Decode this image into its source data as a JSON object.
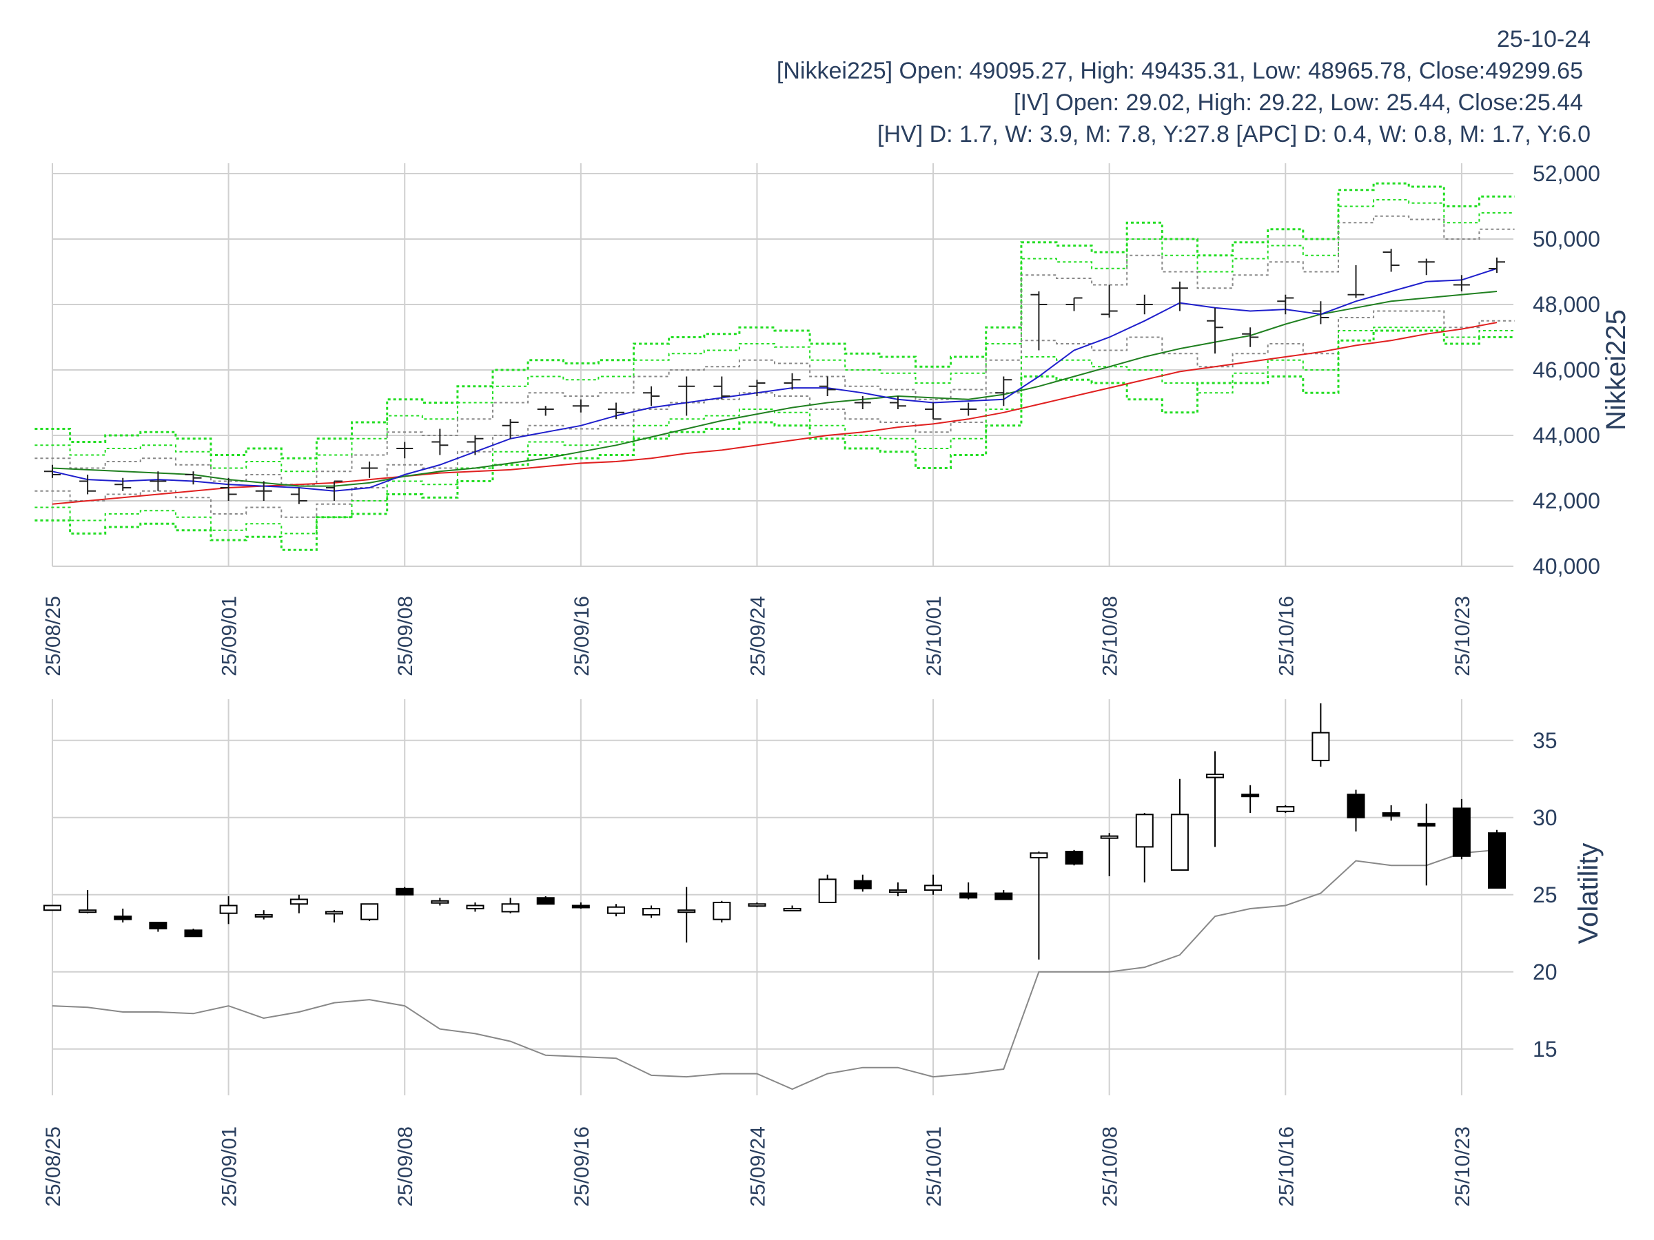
{
  "header": {
    "date": "25-10-24",
    "line1": "[Nikkei225] Open: 49095.27, High: 49435.31, Low: 48965.78, Close:49299.65",
    "line2": "[IV] Open: 29.02, High: 29.22, Low: 25.44, Close:25.44",
    "line3": "[HV] D: 1.7, W: 3.9, M: 7.8, Y:27.8 [APC] D: 0.4, W: 0.8, M: 1.7, Y:6.0"
  },
  "colors": {
    "grid": "#d0d0d0",
    "ohlc": "#222222",
    "ma_blue": "#1f1fcc",
    "ma_green": "#208020",
    "ma_red": "#e02020",
    "band_green": "#22dd22",
    "band_gray": "#888888",
    "hv_line": "#888888"
  },
  "chart_data": [
    {
      "type": "ohlc",
      "name": "price",
      "ylabel": "Nikkei225",
      "ylim": [
        40000,
        52000
      ],
      "yticks": [
        40000,
        42000,
        44000,
        46000,
        48000,
        50000,
        52000
      ],
      "ytick_labels": [
        "40,000",
        "42,000",
        "44,000",
        "46,000",
        "48,000",
        "50,000",
        "52,000"
      ],
      "xticks": [
        "25/08/25",
        "25/09/01",
        "25/09/08",
        "25/09/16",
        "25/09/24",
        "25/10/01",
        "25/10/08",
        "25/10/16",
        "25/10/23"
      ],
      "xtick_index": [
        0,
        5,
        10,
        15,
        20,
        25,
        30,
        35,
        40
      ],
      "x": [
        0,
        1,
        2,
        3,
        4,
        5,
        6,
        7,
        8,
        9,
        10,
        11,
        12,
        13,
        14,
        15,
        16,
        17,
        18,
        19,
        20,
        21,
        22,
        23,
        24,
        25,
        26,
        27,
        28,
        29,
        30,
        31,
        32,
        33,
        34,
        35,
        36,
        37,
        38,
        39,
        40,
        41
      ],
      "open": [
        42900,
        42600,
        42500,
        42600,
        42800,
        42400,
        42300,
        42200,
        42400,
        43000,
        43600,
        43800,
        43800,
        44300,
        44800,
        44900,
        44800,
        45300,
        45500,
        45500,
        45500,
        45600,
        45500,
        45000,
        45000,
        44800,
        44800,
        45300,
        48300,
        48000,
        47700,
        48000,
        48500,
        47500,
        47100,
        48100,
        47800,
        48300,
        49600,
        49300,
        48600,
        49095.27
      ],
      "high": [
        43100,
        42800,
        42700,
        42900,
        42900,
        42700,
        42600,
        42400,
        42600,
        43200,
        43800,
        44200,
        44000,
        44500,
        44900,
        45100,
        45000,
        45500,
        45800,
        45800,
        45700,
        45900,
        45800,
        45200,
        45200,
        45000,
        45000,
        45800,
        48400,
        48200,
        48600,
        48300,
        48700,
        47900,
        47300,
        48300,
        48100,
        49200,
        49700,
        49400,
        48900,
        49435.31
      ],
      "low": [
        42700,
        42200,
        42300,
        42300,
        42500,
        42000,
        42000,
        41900,
        42000,
        42700,
        43300,
        43400,
        43400,
        43900,
        44600,
        44700,
        44500,
        44900,
        44600,
        45100,
        45200,
        45400,
        45200,
        44800,
        44800,
        44500,
        44600,
        44900,
        46600,
        47800,
        47600,
        47700,
        47800,
        46500,
        46700,
        47700,
        47400,
        48200,
        49000,
        48900,
        48400,
        48965.78
      ],
      "close": [
        42800,
        42300,
        42400,
        42600,
        42700,
        42200,
        42300,
        42000,
        42600,
        43000,
        43600,
        43700,
        43900,
        44400,
        44800,
        44900,
        44700,
        45200,
        45500,
        45200,
        45600,
        45700,
        45400,
        45000,
        44900,
        44500,
        44800,
        45700,
        48000,
        48200,
        47800,
        48000,
        48500,
        47300,
        47000,
        48200,
        47600,
        48300,
        49200,
        49300,
        48600,
        49299.65
      ],
      "ma_blue": [
        42900,
        42650,
        42600,
        42650,
        42600,
        42500,
        42450,
        42400,
        42300,
        42400,
        42800,
        43100,
        43500,
        43900,
        44100,
        44300,
        44600,
        44850,
        45000,
        45150,
        45300,
        45450,
        45450,
        45300,
        45100,
        45000,
        45050,
        45100,
        45800,
        46600,
        47000,
        47500,
        48050,
        47900,
        47800,
        47850,
        47700,
        48100,
        48400,
        48700,
        48750,
        49100
      ],
      "ma_green": [
        43000,
        42950,
        42900,
        42850,
        42800,
        42650,
        42550,
        42450,
        42450,
        42550,
        42750,
        42900,
        43000,
        43150,
        43300,
        43500,
        43700,
        43950,
        44200,
        44450,
        44650,
        44850,
        45000,
        45100,
        45200,
        45150,
        45100,
        45250,
        45500,
        45800,
        46100,
        46400,
        46650,
        46850,
        47050,
        47400,
        47700,
        47900,
        48100,
        48200,
        48300,
        48400
      ],
      "ma_red": [
        41900,
        42000,
        42100,
        42200,
        42300,
        42400,
        42450,
        42500,
        42550,
        42650,
        42750,
        42850,
        42900,
        42950,
        43050,
        43150,
        43200,
        43300,
        43450,
        43550,
        43700,
        43850,
        44000,
        44100,
        44250,
        44350,
        44500,
        44700,
        44950,
        45200,
        45450,
        45700,
        45950,
        46100,
        46250,
        46400,
        46550,
        46750,
        46900,
        47100,
        47250,
        47450
      ],
      "band_green_upper2": [
        44200,
        43800,
        44000,
        44100,
        43900,
        43400,
        43600,
        43300,
        43900,
        44400,
        45100,
        45000,
        45500,
        46000,
        46300,
        46200,
        46300,
        46800,
        47000,
        47100,
        47300,
        47200,
        46800,
        46500,
        46400,
        46100,
        46400,
        47300,
        49900,
        49800,
        49600,
        50500,
        50000,
        49500,
        49900,
        50300,
        50000,
        51500,
        51700,
        51600,
        51000,
        51300
      ],
      "band_green_upper1": [
        43700,
        43400,
        43600,
        43700,
        43500,
        43000,
        43200,
        42900,
        43400,
        43900,
        44600,
        44500,
        45000,
        45500,
        45800,
        45700,
        45800,
        46300,
        46500,
        46600,
        46800,
        46700,
        46300,
        46000,
        45900,
        45600,
        45900,
        46800,
        49400,
        49300,
        49100,
        50000,
        49500,
        49000,
        49400,
        49800,
        49500,
        51000,
        51200,
        51100,
        50500,
        50800
      ],
      "band_gray_upper": [
        43300,
        43000,
        43200,
        43300,
        43100,
        42600,
        42800,
        42500,
        42900,
        43400,
        44100,
        44000,
        44500,
        45000,
        45300,
        45200,
        45300,
        45800,
        46000,
        46100,
        46300,
        46200,
        45800,
        45500,
        45400,
        45100,
        45400,
        46300,
        48900,
        48800,
        48600,
        49500,
        49000,
        48500,
        48900,
        49300,
        49000,
        50500,
        50700,
        50600,
        50000,
        50300
      ],
      "band_gray_lower": [
        42300,
        42000,
        42200,
        42300,
        42100,
        41600,
        41800,
        41500,
        41900,
        42400,
        43100,
        43000,
        43500,
        44000,
        44300,
        44200,
        44300,
        44800,
        45000,
        45100,
        45300,
        45200,
        44800,
        44500,
        44400,
        44100,
        44400,
        45300,
        46900,
        46800,
        46600,
        47000,
        46500,
        46100,
        46500,
        46800,
        46500,
        47600,
        47800,
        47800,
        47300,
        47500
      ],
      "band_green_lower1": [
        41800,
        41400,
        41600,
        41700,
        41500,
        41100,
        41300,
        41000,
        41500,
        42000,
        42600,
        42500,
        43000,
        43500,
        43800,
        43700,
        43800,
        44300,
        44500,
        44600,
        44800,
        44700,
        44300,
        44000,
        43900,
        43600,
        43900,
        44800,
        46400,
        46300,
        46100,
        46000,
        45600,
        45300,
        45900,
        46300,
        46000,
        47200,
        47300,
        47300,
        47000,
        47200
      ],
      "band_green_lower2": [
        41400,
        41000,
        41200,
        41300,
        41100,
        40800,
        40900,
        40500,
        41500,
        41600,
        42200,
        42100,
        42600,
        43100,
        43400,
        43300,
        43400,
        43900,
        44100,
        44200,
        44400,
        44300,
        43900,
        43600,
        43500,
        43000,
        43400,
        44300,
        45800,
        45700,
        45600,
        45100,
        44700,
        45600,
        45600,
        45800,
        45300,
        46900,
        47200,
        47200,
        46800,
        47000
      ]
    },
    {
      "type": "candlestick",
      "name": "volatility",
      "ylabel": "Volatility",
      "ylim": [
        12,
        37
      ],
      "yticks": [
        15,
        20,
        25,
        30,
        35
      ],
      "ytick_labels": [
        "15",
        "20",
        "25",
        "30",
        "35"
      ],
      "xticks": [
        "25/08/25",
        "25/09/01",
        "25/09/08",
        "25/09/16",
        "25/09/24",
        "25/10/01",
        "25/10/08",
        "25/10/16",
        "25/10/23"
      ],
      "xtick_index": [
        0,
        5,
        10,
        15,
        20,
        25,
        30,
        35,
        40
      ],
      "x": [
        0,
        1,
        2,
        3,
        4,
        5,
        6,
        7,
        8,
        9,
        10,
        11,
        12,
        13,
        14,
        15,
        16,
        17,
        18,
        19,
        20,
        21,
        22,
        23,
        24,
        25,
        26,
        27,
        28,
        29,
        30,
        31,
        32,
        33,
        34,
        35,
        36,
        37,
        38,
        39,
        40,
        41
      ],
      "open": [
        24.0,
        23.9,
        23.6,
        23.2,
        22.7,
        23.8,
        23.7,
        24.4,
        23.9,
        23.4,
        25.4,
        24.6,
        24.1,
        23.9,
        24.8,
        24.3,
        23.8,
        23.7,
        24.0,
        23.4,
        24.3,
        24.1,
        24.5,
        25.9,
        25.3,
        25.3,
        25.1,
        25.1,
        27.4,
        27.8,
        28.7,
        28.1,
        26.6,
        32.6,
        31.5,
        30.4,
        33.7,
        31.5,
        30.3,
        29.6,
        30.6,
        29.0
      ],
      "high": [
        24.3,
        25.3,
        24.1,
        23.2,
        22.8,
        24.9,
        24.0,
        25.0,
        24.0,
        24.4,
        25.5,
        24.8,
        24.5,
        24.8,
        24.9,
        24.5,
        24.4,
        24.3,
        25.5,
        24.6,
        24.5,
        24.3,
        26.3,
        26.3,
        25.8,
        26.3,
        25.8,
        25.3,
        27.8,
        27.9,
        29.0,
        30.3,
        32.5,
        34.3,
        32.1,
        30.8,
        37.4,
        31.8,
        30.8,
        30.9,
        31.2,
        29.2
      ],
      "low": [
        24.0,
        23.8,
        23.2,
        22.6,
        22.3,
        23.1,
        23.4,
        23.8,
        23.2,
        23.3,
        25.0,
        24.3,
        23.9,
        23.8,
        24.4,
        24.1,
        23.6,
        23.5,
        21.9,
        23.2,
        24.2,
        24.0,
        24.5,
        25.2,
        24.9,
        25.0,
        24.7,
        24.7,
        20.8,
        26.9,
        26.2,
        25.8,
        26.6,
        28.1,
        30.3,
        30.3,
        33.3,
        29.1,
        29.8,
        25.6,
        27.3,
        25.44
      ],
      "close": [
        24.3,
        24.0,
        23.4,
        22.8,
        22.3,
        24.3,
        23.7,
        24.7,
        23.9,
        24.4,
        25.0,
        24.6,
        24.3,
        24.4,
        24.4,
        24.2,
        24.2,
        24.1,
        24.0,
        24.5,
        24.4,
        24.1,
        26.0,
        25.4,
        25.3,
        25.6,
        24.8,
        24.7,
        27.7,
        27.0,
        28.8,
        30.2,
        30.2,
        32.8,
        31.4,
        30.7,
        35.5,
        30.0,
        30.1,
        29.5,
        27.5,
        25.44
      ],
      "hv": [
        17.8,
        17.7,
        17.4,
        17.4,
        17.3,
        17.8,
        17.0,
        17.4,
        18.0,
        18.2,
        17.8,
        16.3,
        16.0,
        15.5,
        14.6,
        14.5,
        14.4,
        13.3,
        13.2,
        13.4,
        13.4,
        12.4,
        13.4,
        13.8,
        13.8,
        13.2,
        13.4,
        13.7,
        20.0,
        20.0,
        20.0,
        20.3,
        21.1,
        23.6,
        24.1,
        24.3,
        25.1,
        27.2,
        26.9,
        26.9,
        27.7,
        27.9
      ]
    }
  ]
}
